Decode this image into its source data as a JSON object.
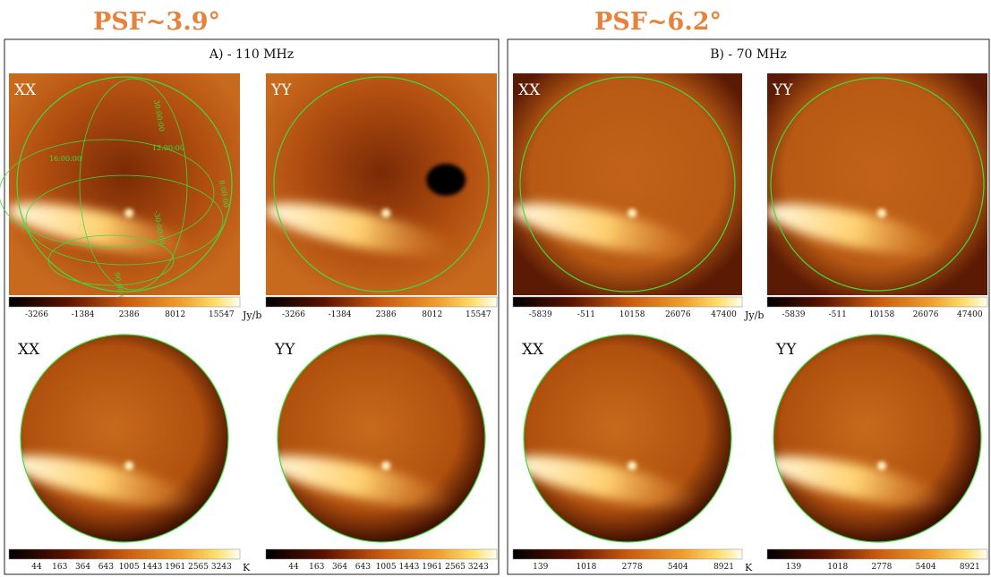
{
  "headers": [
    "PSF~3.9°",
    "PSF~6.2°"
  ],
  "panels": [
    {
      "title": "A) - 110 MHz",
      "rows": [
        {
          "unit": "Jy/b",
          "maps": [
            {
              "label": "XX",
              "colorbar_ticks": [
                -3266,
                -1384,
                2386,
                8012,
                15547
              ],
              "grid_labels": [
                "30:00:00",
                "12:00:00",
                "16:00:00",
                "8:00:00",
                "-30:00:00",
                "90:00:00"
              ]
            },
            {
              "label": "YY",
              "colorbar_ticks": [
                -3266,
                -1384,
                2386,
                8012,
                15547
              ]
            }
          ]
        },
        {
          "unit": "K",
          "maps": [
            {
              "label": "XX",
              "colorbar_ticks": [
                44,
                163,
                364,
                643,
                1005,
                1443,
                1961,
                2565,
                3243
              ]
            },
            {
              "label": "YY",
              "colorbar_ticks": [
                44,
                163,
                364,
                643,
                1005,
                1443,
                1961,
                2565,
                3243
              ]
            }
          ]
        }
      ]
    },
    {
      "title": "B) - 70 MHz",
      "rows": [
        {
          "unit": "Jy/b",
          "maps": [
            {
              "label": "XX",
              "colorbar_ticks": [
                -5839,
                -511,
                10158,
                26076,
                47400
              ]
            },
            {
              "label": "YY",
              "colorbar_ticks": [
                -5839,
                -511,
                10158,
                26076,
                47400
              ]
            }
          ]
        },
        {
          "unit": "K",
          "maps": [
            {
              "label": "XX",
              "colorbar_ticks": [
                139,
                1018,
                2778,
                5404,
                8921
              ]
            },
            {
              "label": "YY",
              "colorbar_ticks": [
                139,
                1018,
                2778,
                5404,
                8921
              ]
            }
          ]
        }
      ]
    }
  ]
}
